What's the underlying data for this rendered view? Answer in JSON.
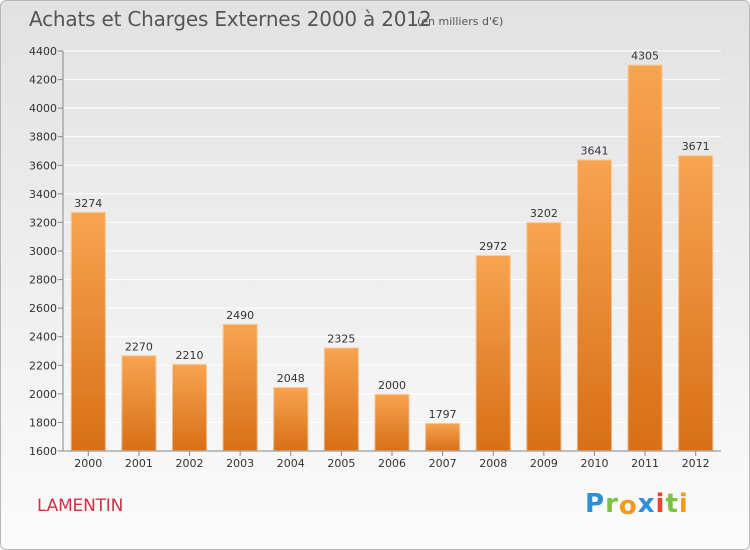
{
  "header": {
    "title": "Achats et Charges Externes 2000 à 2012",
    "subtitle": "(en milliers d'€)"
  },
  "footer": {
    "commune": "LAMENTIN",
    "logo_text": "Proxiti",
    "logo_letters": [
      {
        "ch": "P",
        "color": "#2e8fd8"
      },
      {
        "ch": "r",
        "color": "#7cc242"
      },
      {
        "ch": "o",
        "color": "#f39a1e"
      },
      {
        "ch": "x",
        "color": "#2e8fd8"
      },
      {
        "ch": "i",
        "color": "#e8432e"
      },
      {
        "ch": "t",
        "color": "#7cc242"
      },
      {
        "ch": "i",
        "color": "#f39a1e"
      }
    ]
  },
  "chart_data": {
    "type": "bar",
    "categories": [
      "2000",
      "2001",
      "2002",
      "2003",
      "2004",
      "2005",
      "2006",
      "2007",
      "2008",
      "2009",
      "2010",
      "2011",
      "2012"
    ],
    "values": [
      3274,
      2270,
      2210,
      2490,
      2048,
      2325,
      2000,
      1797,
      2972,
      3202,
      3641,
      4305,
      3671
    ],
    "data_labels": [
      "3274",
      "2270",
      "2210",
      "2490",
      "2048",
      "2325",
      "2000",
      "1797",
      "2972",
      "3202",
      "3641",
      "4305",
      "3671"
    ],
    "title": "Achats et Charges Externes 2000 à 2012",
    "subtitle": "(en milliers d'€)",
    "xlabel": "",
    "ylabel": "",
    "ylim": [
      1600,
      4400
    ],
    "yticks": [
      1600,
      1800,
      2000,
      2200,
      2400,
      2600,
      2800,
      3000,
      3200,
      3400,
      3600,
      3800,
      4000,
      4200,
      4400
    ],
    "grid": true,
    "legend": "none",
    "colors": {
      "bar_top": "#f7a450",
      "bar_bottom": "#d86f16",
      "grid": "#ffffff",
      "axis": "#888888",
      "text": "#333333"
    }
  }
}
